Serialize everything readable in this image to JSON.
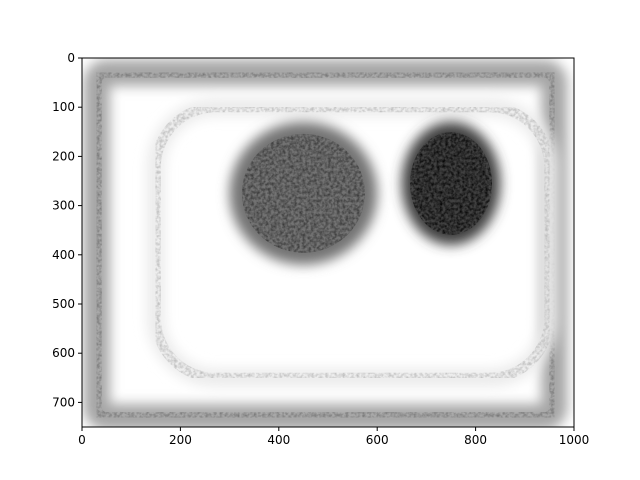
{
  "chart_data": {
    "type": "heatmap",
    "title": "",
    "xlabel": "",
    "ylabel": "",
    "colormap": "gray_r",
    "xlim": [
      0,
      1000
    ],
    "ylim": [
      750,
      0
    ],
    "y_inverted": true,
    "grid": false,
    "x_ticks": [
      0,
      200,
      400,
      600,
      800,
      1000
    ],
    "y_ticks": [
      0,
      100,
      200,
      300,
      400,
      500,
      600,
      700
    ],
    "x_tick_labels": [
      "0",
      "200",
      "400",
      "600",
      "800",
      "1000"
    ],
    "y_tick_labels": [
      "0",
      "100",
      "200",
      "300",
      "400",
      "500",
      "600",
      "700"
    ],
    "description_regions": [
      {
        "name": "outer-border",
        "x": [
          30,
          960
        ],
        "y": [
          30,
          730
        ],
        "intensity": 0.35
      },
      {
        "name": "inner-ring",
        "x": [
          150,
          950
        ],
        "y": [
          100,
          650
        ],
        "intensity": 0.08
      },
      {
        "name": "left-lobe",
        "x": [
          300,
          600
        ],
        "y": [
          130,
          420
        ],
        "intensity": 0.55
      },
      {
        "name": "right-lobe",
        "x": [
          650,
          850
        ],
        "y": [
          130,
          380
        ],
        "intensity": 0.75
      }
    ]
  }
}
